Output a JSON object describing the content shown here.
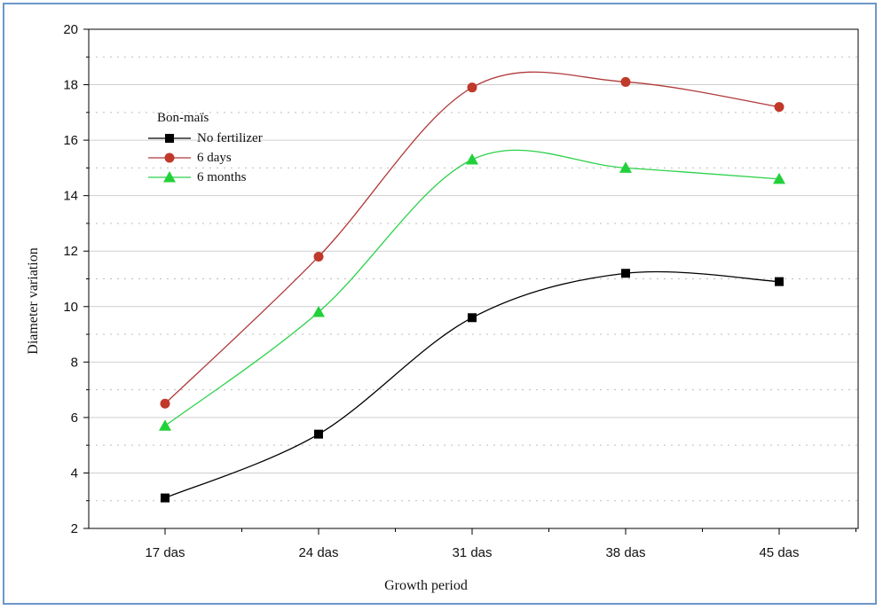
{
  "chart_data": {
    "type": "line",
    "title": "",
    "xlabel": "Growth period",
    "ylabel": "Diameter variation",
    "categories": [
      "17 das",
      "24 das",
      "31 das",
      "38 das",
      "45 das"
    ],
    "ylim": [
      2,
      20
    ],
    "yticks": [
      2,
      4,
      6,
      8,
      10,
      12,
      14,
      16,
      18,
      20
    ],
    "grid": "horizontal dotted",
    "legend": {
      "title": "Bon-maïs",
      "placement": "top-left",
      "entries": [
        "No fertilizer",
        "6 days",
        "6 months"
      ]
    },
    "series": [
      {
        "name": "No fertilizer",
        "marker": "square",
        "color": "#000000",
        "line_color": "#000000",
        "values": [
          3.1,
          5.4,
          9.6,
          11.2,
          10.9
        ]
      },
      {
        "name": "6 days",
        "marker": "circle",
        "color": "#c0392b",
        "line_color": "#b03a3a",
        "values": [
          6.5,
          11.8,
          17.9,
          18.1,
          17.2
        ]
      },
      {
        "name": "6 months",
        "marker": "triangle",
        "color": "#22d13a",
        "line_color": "#2bd14a",
        "values": [
          5.7,
          9.8,
          15.3,
          15.0,
          14.6
        ]
      }
    ]
  }
}
